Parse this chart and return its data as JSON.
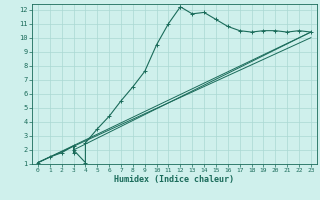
{
  "xlabel": "Humidex (Indice chaleur)",
  "bg_color": "#cff0ec",
  "grid_color": "#aad8d3",
  "line_color": "#1a6b5a",
  "xlim": [
    -0.5,
    23.5
  ],
  "ylim": [
    1,
    12.4
  ],
  "xticks": [
    0,
    1,
    2,
    3,
    4,
    5,
    6,
    7,
    8,
    9,
    10,
    11,
    12,
    13,
    14,
    15,
    16,
    17,
    18,
    19,
    20,
    21,
    22,
    23
  ],
  "yticks": [
    1,
    2,
    3,
    4,
    5,
    6,
    7,
    8,
    9,
    10,
    11,
    12
  ],
  "main_x": [
    0,
    1,
    2,
    3,
    3,
    3,
    4,
    4,
    5,
    6,
    7,
    8,
    9,
    10,
    11,
    12,
    12,
    13,
    14,
    15,
    16,
    17,
    18,
    19,
    20,
    21,
    22,
    23
  ],
  "main_y": [
    1.1,
    1.5,
    1.8,
    2.3,
    1.8,
    2.0,
    1.1,
    2.5,
    3.5,
    4.4,
    5.5,
    6.5,
    7.6,
    9.5,
    11.0,
    12.2,
    12.2,
    11.7,
    11.8,
    11.3,
    10.8,
    10.5,
    10.4,
    10.5,
    10.5,
    10.4,
    10.5,
    10.4
  ],
  "line1_x": [
    0,
    23
  ],
  "line1_y": [
    1.1,
    10.4
  ],
  "line2_x": [
    0,
    23
  ],
  "line2_y": [
    1.1,
    10.0
  ],
  "line3_x": [
    3,
    23
  ],
  "line3_y": [
    2.0,
    10.4
  ]
}
